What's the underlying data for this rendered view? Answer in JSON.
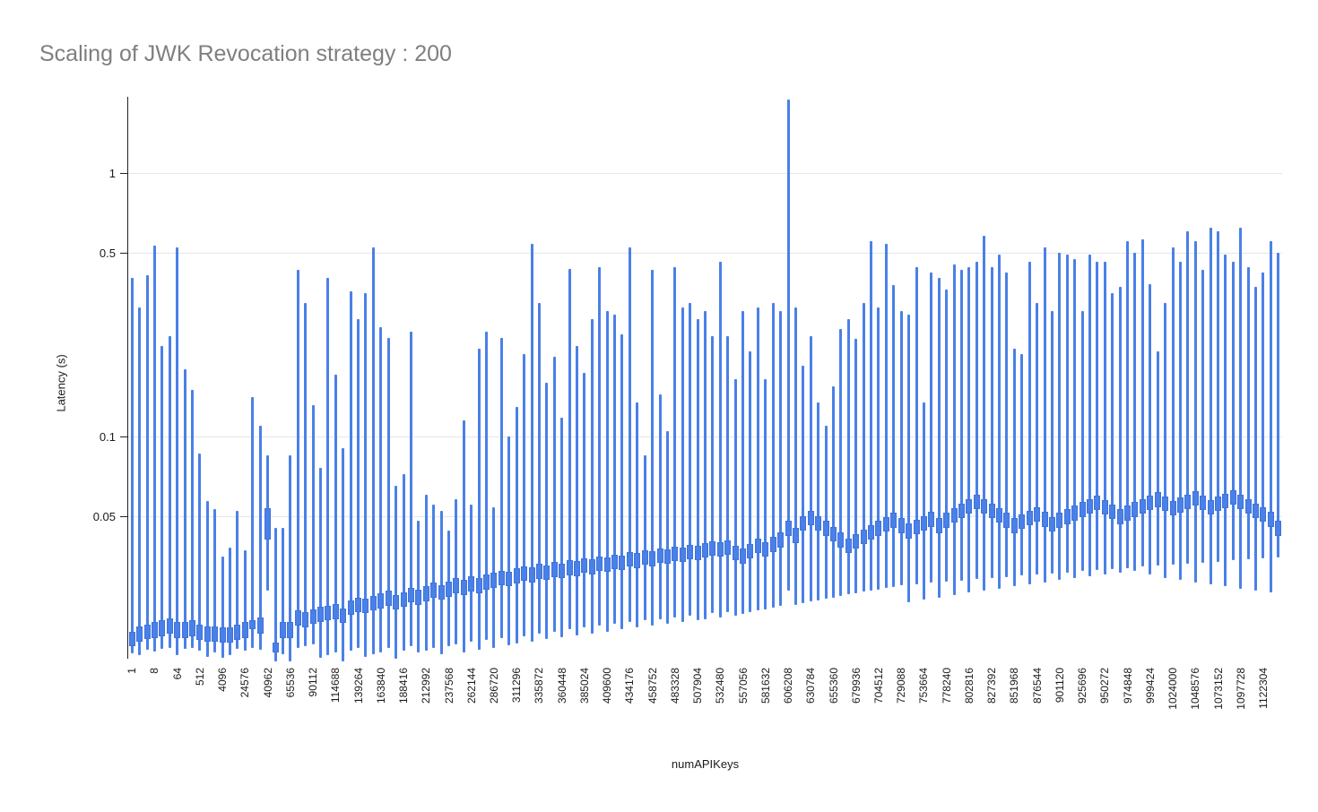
{
  "title": "Scaling of JWK Revocation strategy : 200",
  "colors": {
    "title": "#7f7f7f",
    "axis_line": "#222222",
    "gridline": "#e6e6e6",
    "tick_label": "#1a1a1a",
    "series": "#4a80e8",
    "series_border": "#3f74da",
    "background": "#ffffff"
  },
  "chart_data": {
    "type": "candlestick",
    "title": "Scaling of JWK Revocation strategy : 200",
    "xlabel": "numAPIKeys",
    "ylabel": "Latency (s)",
    "y_scale": "log",
    "grid": "horizontal-only",
    "legend": "none",
    "y_ticks": [
      "1",
      "0.5",
      "0.1",
      "0.05"
    ],
    "y_tick_values": [
      1,
      0.5,
      0.1,
      0.05
    ],
    "y_range_visible": [
      0.0135,
      1.9
    ],
    "x_tick_labels": [
      "1",
      "8",
      "64",
      "512",
      "4096",
      "24576",
      "40962",
      "65536",
      "90112",
      "114688",
      "139264",
      "163840",
      "188416",
      "212992",
      "237568",
      "262144",
      "286720",
      "311296",
      "335872",
      "360448",
      "385024",
      "409600",
      "434176",
      "458752",
      "483328",
      "507904",
      "532480",
      "557056",
      "581632",
      "606208",
      "630784",
      "655360",
      "679936",
      "704512",
      "729088",
      "753664",
      "778240",
      "802816",
      "827392",
      "851968",
      "876544",
      "901120",
      "925696",
      "950272",
      "974848",
      "999424",
      "1024000",
      "1048576",
      "1073152",
      "1097728",
      "1122304"
    ],
    "candles_per_label": 3,
    "candle_format": [
      "low",
      "box_low",
      "box_high",
      "high"
    ],
    "candles": [
      [
        0.015,
        0.016,
        0.0182,
        0.4
      ],
      [
        0.0148,
        0.0167,
        0.019,
        0.31
      ],
      [
        0.0155,
        0.017,
        0.0193,
        0.41
      ],
      [
        0.0153,
        0.0172,
        0.0197,
        0.53
      ],
      [
        0.0156,
        0.0175,
        0.02,
        0.22
      ],
      [
        0.0158,
        0.0179,
        0.0204,
        0.24
      ],
      [
        0.0148,
        0.0172,
        0.0197,
        0.52
      ],
      [
        0.0156,
        0.0172,
        0.0197,
        0.18
      ],
      [
        0.0157,
        0.0175,
        0.02,
        0.15
      ],
      [
        0.0154,
        0.0169,
        0.0193,
        0.086
      ],
      [
        0.0146,
        0.0167,
        0.019,
        0.057
      ],
      [
        0.0151,
        0.0167,
        0.019,
        0.053
      ],
      [
        0.0144,
        0.0165,
        0.0188,
        0.035
      ],
      [
        0.0148,
        0.0165,
        0.0188,
        0.038
      ],
      [
        0.0156,
        0.0169,
        0.0193,
        0.052
      ],
      [
        0.0154,
        0.0172,
        0.0197,
        0.037
      ],
      [
        0.0157,
        0.0185,
        0.0201,
        0.141
      ],
      [
        0.0155,
        0.0179,
        0.0206,
        0.11
      ],
      [
        0.0261,
        0.0406,
        0.0536,
        0.085
      ],
      [
        0.014,
        0.0152,
        0.0165,
        0.045
      ],
      [
        0.0149,
        0.0172,
        0.0197,
        0.045
      ],
      [
        0.014,
        0.0172,
        0.0197,
        0.085
      ],
      [
        0.0157,
        0.0191,
        0.0218,
        0.43
      ],
      [
        0.016,
        0.0189,
        0.0215,
        0.32
      ],
      [
        0.0163,
        0.0194,
        0.0221,
        0.132
      ],
      [
        0.0145,
        0.0198,
        0.0225,
        0.076
      ],
      [
        0.0148,
        0.02,
        0.0228,
        0.4
      ],
      [
        0.0151,
        0.0203,
        0.0231,
        0.172
      ],
      [
        0.014,
        0.0196,
        0.0223,
        0.09
      ],
      [
        0.0154,
        0.021,
        0.0239,
        0.357
      ],
      [
        0.0157,
        0.0215,
        0.0245,
        0.278
      ],
      [
        0.0146,
        0.0213,
        0.0242,
        0.35
      ],
      [
        0.0149,
        0.0218,
        0.0248,
        0.52
      ],
      [
        0.0152,
        0.0223,
        0.0254,
        0.26
      ],
      [
        0.0158,
        0.0228,
        0.026,
        0.236
      ],
      [
        0.0143,
        0.022,
        0.025,
        0.065
      ],
      [
        0.0154,
        0.0225,
        0.0256,
        0.072
      ],
      [
        0.016,
        0.0234,
        0.0266,
        0.25
      ],
      [
        0.0151,
        0.023,
        0.0262,
        0.048
      ],
      [
        0.0154,
        0.0237,
        0.027,
        0.06
      ],
      [
        0.0157,
        0.0244,
        0.0278,
        0.055
      ],
      [
        0.0149,
        0.024,
        0.0273,
        0.052
      ],
      [
        0.016,
        0.0247,
        0.0281,
        0.044
      ],
      [
        0.0163,
        0.0254,
        0.0289,
        0.058
      ],
      [
        0.0152,
        0.025,
        0.0285,
        0.115
      ],
      [
        0.0166,
        0.0258,
        0.0294,
        0.055
      ],
      [
        0.0155,
        0.0254,
        0.0289,
        0.215
      ],
      [
        0.0169,
        0.0262,
        0.0299,
        0.25
      ],
      [
        0.0158,
        0.0267,
        0.0304,
        0.054
      ],
      [
        0.0172,
        0.0272,
        0.031,
        0.236
      ],
      [
        0.0161,
        0.027,
        0.0307,
        0.1
      ],
      [
        0.0164,
        0.0277,
        0.0315,
        0.13
      ],
      [
        0.0175,
        0.0283,
        0.0322,
        0.205
      ],
      [
        0.0167,
        0.028,
        0.0318,
        0.54
      ],
      [
        0.0178,
        0.0288,
        0.0328,
        0.32
      ],
      [
        0.017,
        0.0285,
        0.0324,
        0.16
      ],
      [
        0.0181,
        0.0293,
        0.0333,
        0.2
      ],
      [
        0.0173,
        0.029,
        0.033,
        0.118
      ],
      [
        0.0185,
        0.0298,
        0.0339,
        0.433
      ],
      [
        0.0176,
        0.0295,
        0.0336,
        0.22
      ],
      [
        0.0188,
        0.0304,
        0.0345,
        0.175
      ],
      [
        0.0179,
        0.03,
        0.0342,
        0.28
      ],
      [
        0.0191,
        0.0309,
        0.0351,
        0.44
      ],
      [
        0.0182,
        0.0306,
        0.0348,
        0.3
      ],
      [
        0.0194,
        0.0314,
        0.0357,
        0.29
      ],
      [
        0.0185,
        0.0311,
        0.0354,
        0.245
      ],
      [
        0.0197,
        0.032,
        0.0364,
        0.52
      ],
      [
        0.0188,
        0.0317,
        0.036,
        0.135
      ],
      [
        0.02,
        0.0326,
        0.037,
        0.085
      ],
      [
        0.0191,
        0.0322,
        0.0366,
        0.43
      ],
      [
        0.0203,
        0.0331,
        0.0376,
        0.145
      ],
      [
        0.0194,
        0.0328,
        0.0373,
        0.105
      ],
      [
        0.0206,
        0.0337,
        0.0383,
        0.44
      ],
      [
        0.0197,
        0.0334,
        0.0379,
        0.31
      ],
      [
        0.0209,
        0.0343,
        0.0389,
        0.32
      ],
      [
        0.02,
        0.034,
        0.0386,
        0.28
      ],
      [
        0.0203,
        0.0346,
        0.0393,
        0.3
      ],
      [
        0.0213,
        0.0352,
        0.04,
        0.24
      ],
      [
        0.0206,
        0.0349,
        0.0396,
        0.46
      ],
      [
        0.0216,
        0.0355,
        0.0404,
        0.24
      ],
      [
        0.0209,
        0.034,
        0.0386,
        0.165
      ],
      [
        0.0212,
        0.033,
        0.0375,
        0.3
      ],
      [
        0.0215,
        0.0345,
        0.0392,
        0.21
      ],
      [
        0.0218,
        0.036,
        0.041,
        0.31
      ],
      [
        0.0221,
        0.035,
        0.0398,
        0.165
      ],
      [
        0.0224,
        0.0365,
        0.0415,
        0.32
      ],
      [
        0.0227,
        0.038,
        0.0432,
        0.3
      ],
      [
        0.026,
        0.042,
        0.0478,
        1.9
      ],
      [
        0.023,
        0.0395,
        0.0449,
        0.31
      ],
      [
        0.0233,
        0.044,
        0.05,
        0.185
      ],
      [
        0.0236,
        0.046,
        0.0523,
        0.24
      ],
      [
        0.0239,
        0.044,
        0.05,
        0.135
      ],
      [
        0.0242,
        0.042,
        0.0478,
        0.11
      ],
      [
        0.0245,
        0.04,
        0.0455,
        0.155
      ],
      [
        0.0248,
        0.038,
        0.0432,
        0.255
      ],
      [
        0.0251,
        0.036,
        0.041,
        0.28
      ],
      [
        0.0254,
        0.0375,
        0.0427,
        0.235
      ],
      [
        0.0257,
        0.039,
        0.0444,
        0.32
      ],
      [
        0.026,
        0.0405,
        0.0461,
        0.55
      ],
      [
        0.0263,
        0.042,
        0.0478,
        0.31
      ],
      [
        0.0266,
        0.0435,
        0.0495,
        0.54
      ],
      [
        0.0269,
        0.045,
        0.0512,
        0.375
      ],
      [
        0.0272,
        0.043,
        0.0489,
        0.3
      ],
      [
        0.0235,
        0.041,
        0.0466,
        0.29
      ],
      [
        0.0275,
        0.0425,
        0.0483,
        0.44
      ],
      [
        0.024,
        0.044,
        0.05,
        0.135
      ],
      [
        0.0278,
        0.0455,
        0.0517,
        0.42
      ],
      [
        0.0245,
        0.043,
        0.0489,
        0.4
      ],
      [
        0.0281,
        0.045,
        0.0512,
        0.36
      ],
      [
        0.025,
        0.047,
        0.0534,
        0.45
      ],
      [
        0.0284,
        0.049,
        0.0557,
        0.43
      ],
      [
        0.0255,
        0.051,
        0.058,
        0.44
      ],
      [
        0.0287,
        0.053,
        0.0602,
        0.46
      ],
      [
        0.026,
        0.051,
        0.058,
        0.58
      ],
      [
        0.029,
        0.049,
        0.0557,
        0.44
      ],
      [
        0.0265,
        0.047,
        0.0534,
        0.49
      ],
      [
        0.0293,
        0.045,
        0.0512,
        0.42
      ],
      [
        0.027,
        0.043,
        0.0489,
        0.215
      ],
      [
        0.0296,
        0.0445,
        0.0506,
        0.205
      ],
      [
        0.0275,
        0.046,
        0.0523,
        0.46
      ],
      [
        0.0299,
        0.0475,
        0.054,
        0.32
      ],
      [
        0.028,
        0.0455,
        0.0517,
        0.52
      ],
      [
        0.0302,
        0.0435,
        0.0494,
        0.3
      ],
      [
        0.0285,
        0.045,
        0.0512,
        0.5
      ],
      [
        0.0305,
        0.0465,
        0.0529,
        0.49
      ],
      [
        0.029,
        0.048,
        0.0546,
        0.47
      ],
      [
        0.0308,
        0.0495,
        0.0563,
        0.3
      ],
      [
        0.0295,
        0.051,
        0.058,
        0.49
      ],
      [
        0.0311,
        0.0525,
        0.0597,
        0.46
      ],
      [
        0.03,
        0.0505,
        0.0574,
        0.46
      ],
      [
        0.0314,
        0.0485,
        0.0551,
        0.35
      ],
      [
        0.0305,
        0.0465,
        0.0529,
        0.37
      ],
      [
        0.0317,
        0.048,
        0.0546,
        0.55
      ],
      [
        0.031,
        0.0495,
        0.0563,
        0.5
      ],
      [
        0.032,
        0.051,
        0.058,
        0.56
      ],
      [
        0.03,
        0.0525,
        0.0597,
        0.38
      ],
      [
        0.0323,
        0.054,
        0.0614,
        0.21
      ],
      [
        0.029,
        0.052,
        0.0591,
        0.32
      ],
      [
        0.0326,
        0.05,
        0.0569,
        0.52
      ],
      [
        0.0285,
        0.0515,
        0.0586,
        0.46
      ],
      [
        0.0329,
        0.053,
        0.0603,
        0.6
      ],
      [
        0.028,
        0.0545,
        0.062,
        0.55
      ],
      [
        0.0332,
        0.0525,
        0.0597,
        0.43
      ],
      [
        0.0275,
        0.0505,
        0.0574,
        0.62
      ],
      [
        0.0335,
        0.052,
        0.0591,
        0.6
      ],
      [
        0.027,
        0.0535,
        0.0608,
        0.49
      ],
      [
        0.0338,
        0.055,
        0.0625,
        0.46
      ],
      [
        0.0265,
        0.053,
        0.0603,
        0.62
      ],
      [
        0.0341,
        0.051,
        0.058,
        0.44
      ],
      [
        0.026,
        0.049,
        0.0557,
        0.37
      ],
      [
        0.0344,
        0.0475,
        0.054,
        0.42
      ],
      [
        0.0255,
        0.0455,
        0.0517,
        0.55
      ],
      [
        0.0347,
        0.042,
        0.0478,
        0.5
      ]
    ]
  }
}
